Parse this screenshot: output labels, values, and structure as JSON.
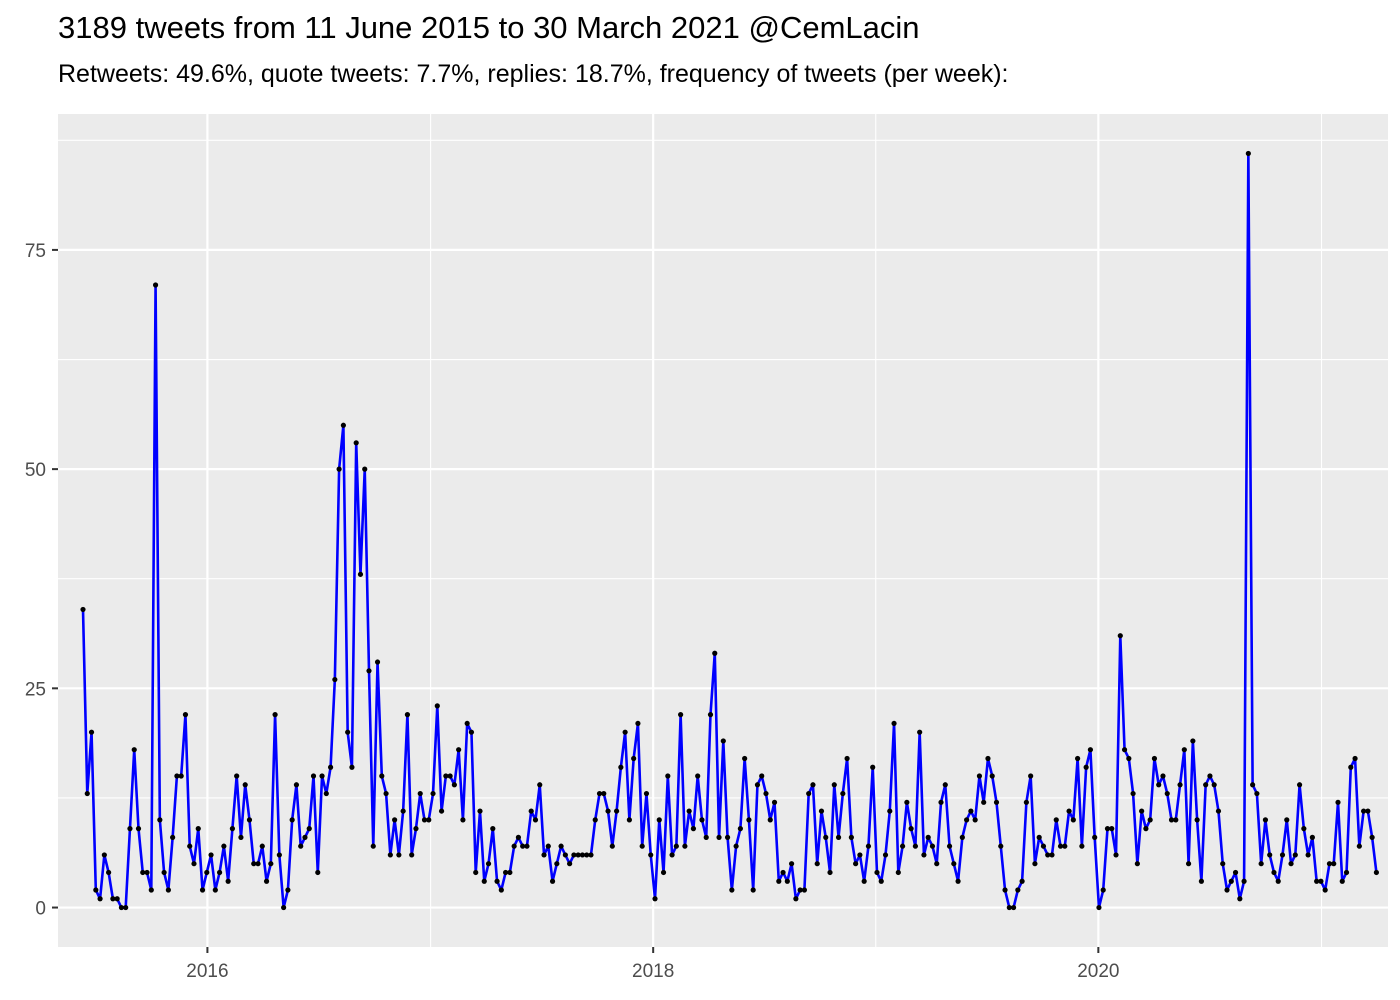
{
  "chart_data": {
    "type": "line",
    "title": "3189 tweets from 11 June 2015 to 30 March 2021 @CemLacin",
    "subtitle": "Retweets: 49.6%, quote tweets: 7.7%, replies: 18.7%, frequency of tweets (per week):",
    "xlabel": "",
    "ylabel": "",
    "x_axis": "date",
    "x_range": [
      "2015-05-01",
      "2021-04-20"
    ],
    "ylim": [
      -4.5,
      90.5
    ],
    "y_ticks": [
      0,
      25,
      50,
      75
    ],
    "y_tick_labels": [
      "0",
      "25",
      "50",
      "75"
    ],
    "x_ticks": [
      "2016-01-01",
      "2018-01-01",
      "2020-01-01"
    ],
    "x_tick_labels": [
      "2016",
      "2018",
      "2020"
    ],
    "grid": true,
    "legend": "none",
    "line_color": "#0000ff",
    "point_color": "#000000",
    "panel_color": "#ebebeb",
    "series": [
      {
        "start_date": "2015-06-11",
        "interval_days": 7,
        "values": [
          34,
          13,
          20,
          2,
          1,
          6,
          4,
          1,
          1,
          0,
          0,
          9,
          18,
          9,
          4,
          4,
          2,
          71,
          10,
          4,
          2,
          8,
          15,
          15,
          22,
          7,
          5,
          9,
          2,
          4,
          6,
          2,
          4,
          7,
          3,
          9,
          15,
          8,
          14,
          10,
          5,
          5,
          7,
          3,
          5,
          22,
          6,
          0,
          2,
          10,
          14,
          7,
          8,
          9,
          15,
          4,
          15,
          13,
          16,
          26,
          50,
          55,
          20,
          16,
          53,
          38,
          50,
          27,
          7,
          28,
          15,
          13,
          6,
          10,
          6,
          11,
          22,
          6,
          9,
          13,
          10,
          10,
          13,
          23,
          11,
          15,
          15,
          14,
          18,
          10,
          21,
          20,
          4,
          11,
          3,
          5,
          9,
          3,
          2,
          4,
          4,
          7,
          8,
          7,
          7,
          11,
          10,
          14,
          6,
          7,
          3,
          5,
          7,
          6,
          5,
          6,
          6,
          6,
          6,
          6,
          10,
          13,
          13,
          11,
          7,
          11,
          16,
          20,
          10,
          17,
          21,
          7,
          13,
          6,
          1,
          10,
          4,
          15,
          6,
          7,
          22,
          7,
          11,
          9,
          15,
          10,
          8,
          22,
          29,
          8,
          19,
          8,
          2,
          7,
          9,
          17,
          10,
          2,
          14,
          15,
          13,
          10,
          12,
          3,
          4,
          3,
          5,
          1,
          2,
          2,
          13,
          14,
          5,
          11,
          8,
          4,
          14,
          8,
          13,
          17,
          8,
          5,
          6,
          3,
          7,
          16,
          4,
          3,
          6,
          11,
          21,
          4,
          7,
          12,
          9,
          7,
          20,
          6,
          8,
          7,
          5,
          12,
          14,
          7,
          5,
          3,
          8,
          10,
          11,
          10,
          15,
          12,
          17,
          15,
          12,
          7,
          2,
          0,
          0,
          2,
          3,
          12,
          15,
          5,
          8,
          7,
          6,
          6,
          10,
          7,
          7,
          11,
          10,
          17,
          7,
          16,
          18,
          8,
          0,
          2,
          9,
          9,
          6,
          31,
          18,
          17,
          13,
          5,
          11,
          9,
          10,
          17,
          14,
          15,
          13,
          10,
          10,
          14,
          18,
          5,
          19,
          10,
          3,
          14,
          15,
          14,
          11,
          5,
          2,
          3,
          4,
          1,
          3,
          86,
          14,
          13,
          5,
          10,
          6,
          4,
          3,
          6,
          10,
          5,
          6,
          14,
          9,
          6,
          8,
          3,
          3,
          2,
          5,
          5,
          12,
          3,
          4,
          16,
          17,
          7,
          11,
          11,
          8,
          4
        ]
      }
    ]
  }
}
